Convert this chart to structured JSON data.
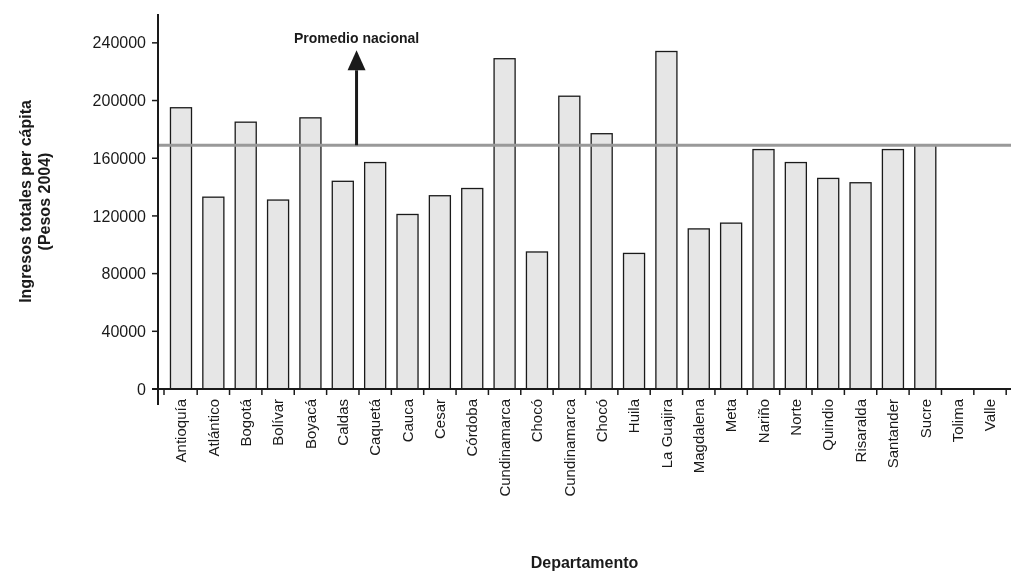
{
  "chart_data": {
    "type": "bar",
    "xlabel": "Departamento",
    "ylabel": "Ingresos totales per cápita\n(Pesos 2004)",
    "categories": [
      "Antioquía",
      "Atlántico",
      "Bogotá",
      "Bolívar",
      "Boyacá",
      "Caldas",
      "Caquetá",
      "Cauca",
      "Cesar",
      "Córdoba",
      "Cundinamarca",
      "Chocó",
      "Cundinamarca",
      "Chocó",
      "Huila",
      "La Guajira",
      "Magdalena",
      "Meta",
      "Nariño",
      "Norte",
      "Quindio",
      "Risaralda",
      "Santander",
      "Sucre",
      "Tolima",
      "Valle"
    ],
    "values": [
      195000,
      133000,
      185000,
      131000,
      188000,
      144000,
      157000,
      121000,
      134000,
      139000,
      229000,
      95000,
      203000,
      177000,
      94000,
      234000,
      111000,
      115000,
      166000,
      157000,
      146000,
      143000,
      166000,
      169000,
      null,
      null
    ],
    "color": "#e6e6e6",
    "ylim": [
      0,
      260000
    ],
    "yticks": [
      0,
      40000,
      80000,
      120000,
      160000,
      200000,
      240000
    ],
    "ref_lines": [
      {
        "axis": "y",
        "value": 169000,
        "color": "#999999"
      }
    ],
    "annotations": [
      "Promedio nacional"
    ],
    "grid": false
  }
}
